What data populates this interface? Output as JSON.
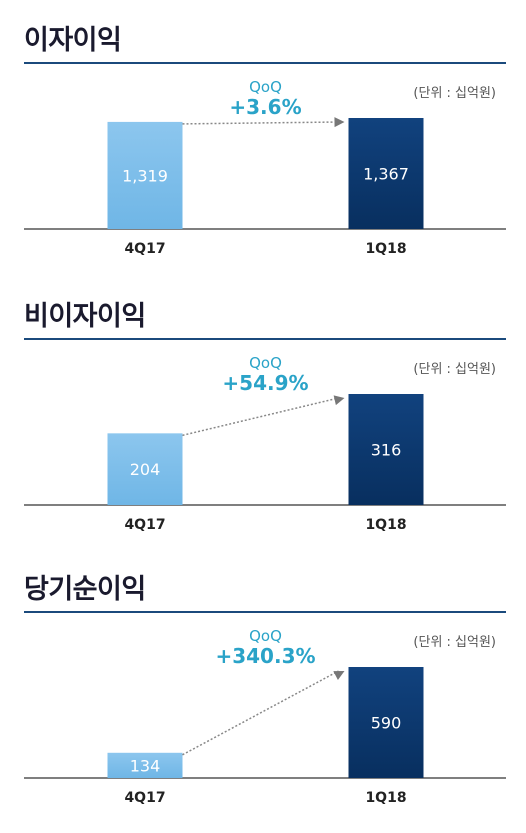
{
  "colors": {
    "bar_prev": "#6fb6e6",
    "bar_curr": "#0f3f79",
    "accent": "#2aa3c8",
    "rule": "#1b4a7c"
  },
  "chart_data": [
    {
      "type": "bar",
      "title": "이자이익",
      "unit": "(단위 : 십억원)",
      "categories": [
        "4Q17",
        "1Q18"
      ],
      "values": [
        1319,
        1367
      ],
      "value_labels": [
        "1,319",
        "1,367"
      ],
      "change_label": "QoQ",
      "change_value": "+3.6%"
    },
    {
      "type": "bar",
      "title": "비이자이익",
      "unit": "(단위 : 십억원)",
      "categories": [
        "4Q17",
        "1Q18"
      ],
      "values": [
        204,
        316
      ],
      "value_labels": [
        "204",
        "316"
      ],
      "change_label": "QoQ",
      "change_value": "+54.9%"
    },
    {
      "type": "bar",
      "title": "당기순이익",
      "unit": "(단위 : 십억원)",
      "categories": [
        "4Q17",
        "1Q18"
      ],
      "values": [
        134,
        590
      ],
      "value_labels": [
        "134",
        "590"
      ],
      "change_label": "QoQ",
      "change_value": "+340.3%"
    }
  ]
}
